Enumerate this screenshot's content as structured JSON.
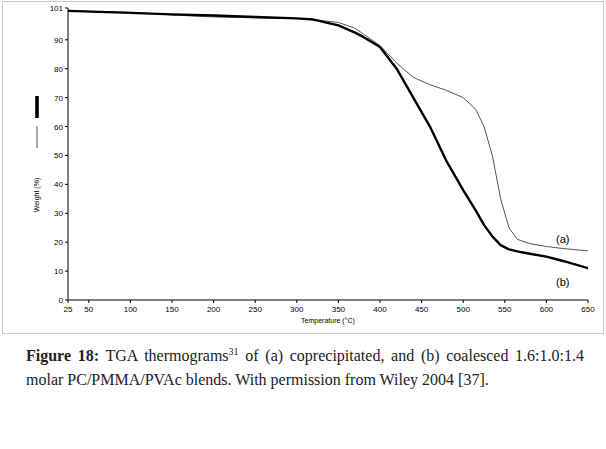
{
  "chart_data": {
    "type": "line",
    "x_label": "Temperature (°C)",
    "y_label": "Weight (%)",
    "x": [
      25,
      100,
      150,
      200,
      250,
      300,
      320,
      350,
      370,
      380,
      400,
      420,
      440,
      460,
      480,
      500,
      515,
      525,
      535,
      545,
      555,
      565,
      580,
      600,
      620,
      650
    ],
    "series": [
      {
        "name": "(a)",
        "color": "#555555",
        "line_style": "thin",
        "values": [
          100,
          99.5,
          98.6,
          97.9,
          97.6,
          97.3,
          97,
          96,
          94,
          92,
          88,
          82,
          77,
          74.5,
          72.5,
          70,
          66,
          60,
          50,
          35,
          25,
          21,
          19.5,
          18.5,
          17.8,
          17
        ]
      },
      {
        "name": "(b)",
        "color": "#000000",
        "line_style": "thick",
        "values": [
          100,
          99.3,
          98.8,
          98.4,
          97.9,
          97.4,
          97,
          95,
          92.5,
          91,
          87.5,
          80,
          70,
          60,
          48,
          38,
          31,
          26,
          22,
          19,
          17.5,
          16.8,
          16,
          15,
          13.5,
          11
        ]
      }
    ],
    "xlim": [
      25,
      650
    ],
    "xticks": [
      25,
      50,
      100,
      150,
      200,
      250,
      300,
      350,
      400,
      450,
      500,
      550,
      600,
      650
    ],
    "ylim": [
      0,
      101
    ],
    "yticks": [
      0,
      10,
      20,
      30,
      40,
      50,
      60,
      70,
      80,
      90,
      101
    ],
    "grid": false,
    "caption": {
      "label": "Figure 18:",
      "text": " TGA thermograms",
      "superscript": "31",
      "rest": " of (a) coprecipitated, and (b) coalesced 1.6:1.0:1.4 molar PC/PMMA/PVAc blends. With permission from Wiley 2004 [37]."
    }
  }
}
